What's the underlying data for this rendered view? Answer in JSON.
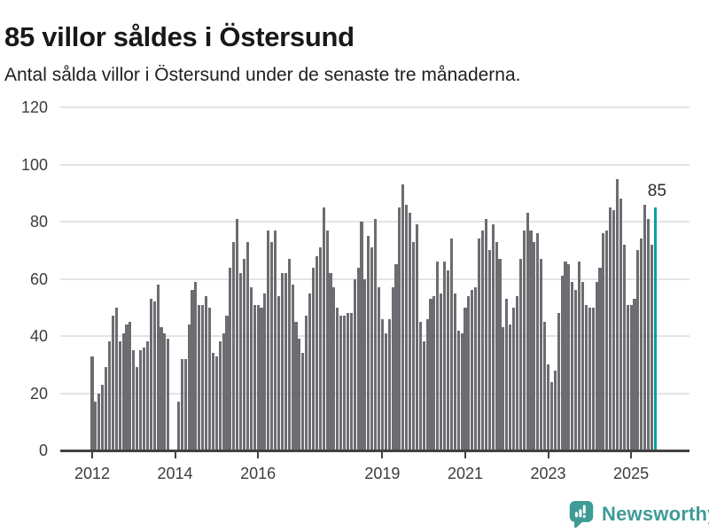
{
  "header": {
    "title": "85 villor såldes i Östersund",
    "subtitle": "Antal sålda villor i Östersund under de senaste tre månaderna."
  },
  "annotation": {
    "last_value_label": "85"
  },
  "footer": {
    "brand": "Newsworthy",
    "logo_icon": "newsworthy-speech-bubble-bar-chart-icon"
  },
  "colors": {
    "bar": "#6c6c71",
    "highlight": "#00a1a1",
    "grid": "#e4e4e4",
    "axis": "#424242",
    "title_text": "#181816",
    "tick_label": "#3c3c3c",
    "brand_teal": "#3f9b95"
  },
  "chart_data": {
    "type": "bar",
    "title": "85 villor såldes i Östersund",
    "subtitle": "Antal sålda villor i Östersund under de senaste tre månaderna.",
    "unit": "sålda villor (rullande 3 månader)",
    "frequency": "monthly",
    "start_month": "2012-01",
    "end_month": "2025-08",
    "ylim": [
      0,
      120
    ],
    "y_ticks": [
      0,
      20,
      40,
      60,
      80,
      100,
      120
    ],
    "x_tick_years": [
      2012,
      2014,
      2016,
      2019,
      2021,
      2023,
      2025
    ],
    "x_tick_labels": [
      "2012",
      "2014",
      "2016",
      "2019",
      "2021",
      "2023",
      "2025"
    ],
    "grid": true,
    "legend": false,
    "highlight_last_bar": true,
    "last_value": 85,
    "values": [
      33,
      17,
      20,
      23,
      29,
      38,
      47,
      50,
      38,
      41,
      44,
      45,
      35,
      29,
      35,
      36,
      38,
      53,
      52,
      58,
      43,
      41,
      39,
      null,
      null,
      17,
      32,
      32,
      44,
      56,
      59,
      51,
      51,
      54,
      50,
      34,
      33,
      38,
      41,
      47,
      64,
      73,
      81,
      62,
      67,
      73,
      57,
      51,
      51,
      50,
      55,
      77,
      73,
      77,
      54,
      62,
      62,
      67,
      58,
      45,
      39,
      34,
      47,
      55,
      64,
      68,
      71,
      85,
      77,
      62,
      57,
      50,
      47,
      47,
      48,
      48,
      60,
      64,
      80,
      60,
      75,
      71,
      81,
      57,
      46,
      41,
      46,
      57,
      65,
      85,
      93,
      86,
      83,
      73,
      79,
      45,
      38,
      46,
      53,
      54,
      66,
      55,
      66,
      63,
      74,
      55,
      42,
      41,
      50,
      54,
      56,
      57,
      74,
      77,
      81,
      70,
      79,
      73,
      67,
      43,
      53,
      44,
      50,
      54,
      67,
      77,
      83,
      77,
      73,
      76,
      67,
      45,
      30,
      24,
      28,
      48,
      61,
      66,
      65,
      59,
      56,
      66,
      59,
      51,
      50,
      50,
      59,
      64,
      76,
      77,
      85,
      84,
      95,
      88,
      72,
      51,
      51,
      53,
      70,
      74,
      86,
      81,
      72,
      85
    ]
  }
}
